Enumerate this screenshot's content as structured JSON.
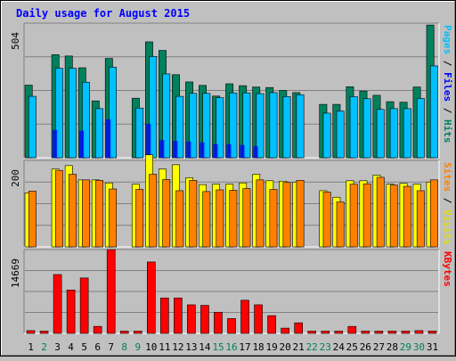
{
  "chart_data": {
    "type": "bar",
    "title": "Daily usage for August 2015",
    "categories": [
      "1",
      "2",
      "3",
      "4",
      "5",
      "6",
      "7",
      "8",
      "9",
      "10",
      "11",
      "12",
      "13",
      "14",
      "15",
      "16",
      "17",
      "18",
      "19",
      "20",
      "21",
      "22",
      "23",
      "24",
      "25",
      "26",
      "27",
      "28",
      "29",
      "30",
      "31"
    ],
    "weekend_days": [
      "2",
      "8",
      "9",
      "15",
      "16",
      "22",
      "23",
      "29",
      "30"
    ],
    "panels": [
      {
        "id": "hits-files-pages",
        "ymax_label": "504",
        "ymax": 504,
        "axis_labels": [
          {
            "text": "Hits",
            "color": "#00805c"
          },
          {
            "text": " / ",
            "color": "#000000"
          },
          {
            "text": "Files",
            "color": "#0000ff"
          },
          {
            "text": " / ",
            "color": "#000000"
          },
          {
            "text": "Pages",
            "color": "#00c0ff"
          }
        ],
        "series": [
          {
            "name": "Hits",
            "color": "#00805c",
            "values": [
              272,
              0,
              386,
              381,
              337,
              213,
              372,
              0,
              223,
              434,
              402,
              311,
              284,
              271,
              231,
              277,
              270,
              265,
              263,
              252,
              244,
              0,
              200,
              200,
              266,
              250,
              234,
              210,
              208,
              265,
              497
            ]
          },
          {
            "name": "Files",
            "color": "#0000ff",
            "values": [
              0,
              0,
              104,
              0,
              101,
              0,
              144,
              0,
              0,
              127,
              66,
              63,
              61,
              58,
              51,
              51,
              48,
              43,
              0,
              0,
              0,
              0,
              0,
              0,
              0,
              0,
              0,
              0,
              0,
              0,
              0
            ]
          },
          {
            "name": "Pages",
            "color": "#00c0ff",
            "values": [
              230,
              0,
              335,
              335,
              283,
              184,
              339,
              0,
              186,
              379,
              314,
              230,
              241,
              241,
              225,
              243,
              243,
              240,
              244,
              229,
              236,
              0,
              167,
              175,
              229,
              221,
              181,
              184,
              184,
              222,
              344
            ]
          }
        ]
      },
      {
        "id": "visits-sites",
        "ymax_label": "200",
        "ymax": 200,
        "axis_labels": [
          {
            "text": "Visits",
            "color": "#e0e000"
          },
          {
            "text": " / ",
            "color": "#000000"
          },
          {
            "text": "Sites",
            "color": "#ff8000"
          }
        ],
        "series": [
          {
            "name": "Visits",
            "color": "#ffff00",
            "values": [
              125,
              0,
              180,
              188,
              155,
              155,
              148,
              0,
              145,
              213,
              180,
              190,
              160,
              144,
              145,
              145,
              148,
              168,
              153,
              152,
              150,
              0,
              130,
              115,
              153,
              153,
              166,
              145,
              147,
              145,
              150
            ]
          },
          {
            "name": "Sites",
            "color": "#ff8000",
            "values": [
              129,
              0,
              177,
              168,
              155,
              154,
              134,
              0,
              133,
              168,
              156,
              130,
              154,
              128,
              132,
              131,
              135,
              155,
              133,
              149,
              154,
              0,
              127,
              104,
              145,
              146,
              161,
              143,
              140,
              130,
              155
            ]
          }
        ]
      },
      {
        "id": "kbytes",
        "ymax_label": "14669",
        "ymax": 14669,
        "axis_labels": [
          {
            "text": "KBytes",
            "color": "#ff0000"
          }
        ],
        "series": [
          {
            "name": "KBytes",
            "color": "#ff0000",
            "values": [
              480,
              0,
              10300,
              7600,
              9700,
              1220,
              14669,
              0,
              0,
              12500,
              6200,
              6200,
              5000,
              4900,
              3700,
              2600,
              5800,
              5000,
              3100,
              920,
              1850,
              0,
              0,
              0,
              1220,
              0,
              0,
              0,
              0,
              480,
              0
            ]
          }
        ]
      }
    ]
  }
}
